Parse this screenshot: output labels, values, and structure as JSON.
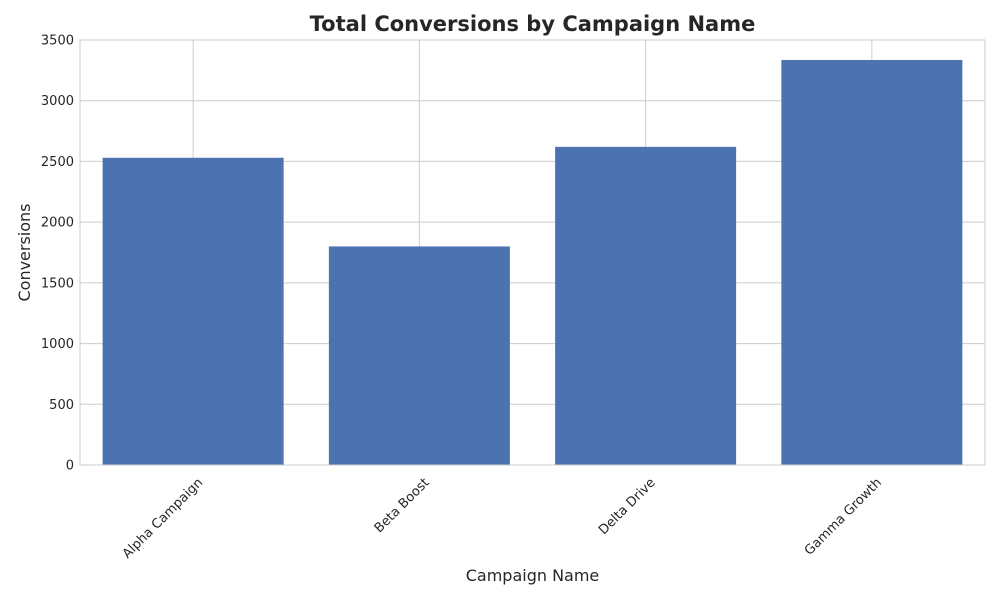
{
  "chart_data": {
    "type": "bar",
    "title": "Total Conversions by Campaign Name",
    "xlabel": "Campaign Name",
    "ylabel": "Conversions",
    "categories": [
      "Alpha Campaign",
      "Beta Boost",
      "Delta Drive",
      "Gamma Growth"
    ],
    "values": [
      2530,
      1800,
      2620,
      3335
    ],
    "ylim": [
      0,
      3500
    ],
    "yticks": [
      0,
      500,
      1000,
      1500,
      2000,
      2500,
      3000,
      3500
    ],
    "grid": true,
    "bar_color": "#4c72b0"
  }
}
